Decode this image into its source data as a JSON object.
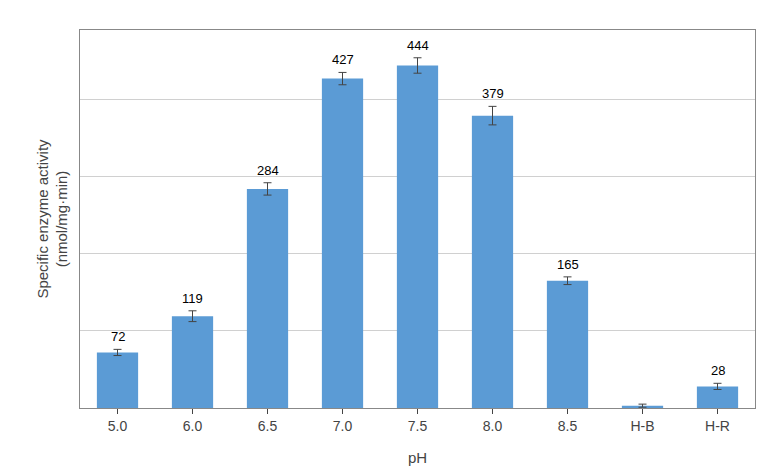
{
  "chart_data": {
    "type": "bar",
    "xlabel": "pH",
    "ylabel": "Specific enzyme activity\n(nmol/mg·min)",
    "categories": [
      "5.0",
      "6.0",
      "6.5",
      "7.0",
      "7.5",
      "8.0",
      "8.5",
      "H-B",
      "H-R"
    ],
    "values": [
      72,
      119,
      284,
      427,
      444,
      379,
      165,
      3,
      28
    ],
    "errors": [
      4,
      7,
      8,
      8,
      10,
      12,
      5,
      2,
      4
    ],
    "data_labels": true,
    "value_labels": [
      "72",
      "119",
      "284",
      "427",
      "444",
      "379",
      "165",
      null,
      "28"
    ],
    "color": "#5B9BD5",
    "ylim": [
      0,
      490
    ],
    "yticks": [
      0,
      100,
      200,
      300,
      400
    ],
    "tick_labels": "x",
    "grid": true
  }
}
